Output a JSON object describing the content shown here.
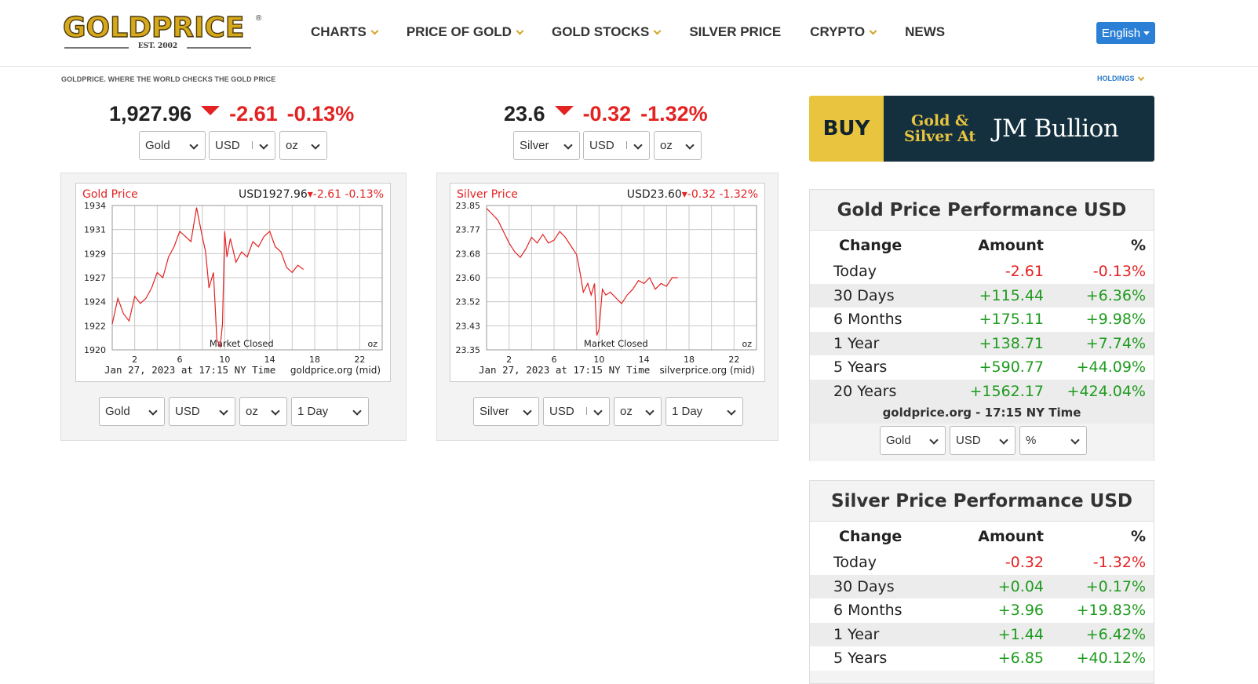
{
  "header": {
    "logo": "GOLDPRICE",
    "logo_est": "EST. 2002",
    "nav": [
      {
        "label": "CHARTS",
        "dropdown": true
      },
      {
        "label": "PRICE OF GOLD",
        "dropdown": true
      },
      {
        "label": "GOLD STOCKS",
        "dropdown": true
      },
      {
        "label": "SILVER PRICE",
        "dropdown": false
      },
      {
        "label": "CRYPTO",
        "dropdown": true
      },
      {
        "label": "NEWS",
        "dropdown": false
      }
    ],
    "language": "English",
    "tagline": "GOLDPRICE. WHERE THE WORLD CHECKS THE GOLD PRICE",
    "holdings": "HOLDINGS"
  },
  "gold_ticker": {
    "price": "1,927.96",
    "change": "-2.61",
    "percent": "-0.13%",
    "metal": "Gold",
    "currency": "USD",
    "unit": "oz"
  },
  "silver_ticker": {
    "price": "23.6",
    "change": "-0.32",
    "percent": "-1.32%",
    "metal": "Silver",
    "currency": "USD",
    "unit": "oz"
  },
  "gold_chart_selects": {
    "metal": "Gold",
    "currency": "USD",
    "unit": "oz",
    "range": "1 Day"
  },
  "silver_chart_selects": {
    "metal": "Silver",
    "currency": "USD",
    "unit": "oz",
    "range": "1 Day"
  },
  "banner": {
    "buy": "BUY",
    "gs_line1": "Gold &",
    "gs_line2": "Silver At",
    "brand": "JM Bullion"
  },
  "gold_perf": {
    "title": "Gold Price Performance USD",
    "headers": [
      "Change",
      "Amount",
      "%"
    ],
    "rows": [
      {
        "period": "Today",
        "amount": "-2.61",
        "pct": "-0.13%",
        "neg": true
      },
      {
        "period": "30 Days",
        "amount": "+115.44",
        "pct": "+6.36%",
        "neg": false
      },
      {
        "period": "6 Months",
        "amount": "+175.11",
        "pct": "+9.98%",
        "neg": false
      },
      {
        "period": "1 Year",
        "amount": "+138.71",
        "pct": "+7.74%",
        "neg": false
      },
      {
        "period": "5 Years",
        "amount": "+590.77",
        "pct": "+44.09%",
        "neg": false
      },
      {
        "period": "20 Years",
        "amount": "+1562.17",
        "pct": "+424.04%",
        "neg": false
      }
    ],
    "footer": "goldprice.org - 17:15 NY Time",
    "selects": {
      "metal": "Gold",
      "currency": "USD",
      "mode": "%"
    }
  },
  "silver_perf": {
    "title": "Silver Price Performance USD",
    "headers": [
      "Change",
      "Amount",
      "%"
    ],
    "rows": [
      {
        "period": "Today",
        "amount": "-0.32",
        "pct": "-1.32%",
        "neg": true
      },
      {
        "period": "30 Days",
        "amount": "+0.04",
        "pct": "+0.17%",
        "neg": false
      },
      {
        "period": "6 Months",
        "amount": "+3.96",
        "pct": "+19.83%",
        "neg": false
      },
      {
        "period": "1 Year",
        "amount": "+1.44",
        "pct": "+6.42%",
        "neg": false
      },
      {
        "period": "5 Years",
        "amount": "+6.85",
        "pct": "+40.12%",
        "neg": false
      }
    ]
  },
  "chart_data": [
    {
      "type": "line",
      "title": "Gold Price",
      "header_value": "USD1927.96",
      "header_change": "-2.61",
      "header_percent": "-0.13%",
      "y_ticks": [
        "1934",
        "1931",
        "1929",
        "1927",
        "1924",
        "1922",
        "1920"
      ],
      "ylim": [
        1920,
        1934
      ],
      "x_ticks": [
        "2",
        "6",
        "10",
        "14",
        "18",
        "22"
      ],
      "xlim": [
        0,
        24
      ],
      "footer_left": "Jan 27, 2023 at 17:15 NY Time",
      "footer_right": "goldprice.org (mid)",
      "annotation": "Market Closed",
      "color": "#e32222",
      "x": [
        0,
        0.5,
        1,
        1.5,
        2,
        2.5,
        3,
        3.5,
        4,
        4.5,
        5,
        5.5,
        6,
        6.5,
        7,
        7.5,
        8,
        8.3,
        8.6,
        9,
        9.3,
        9.6,
        9.8,
        10,
        10.2,
        10.5,
        11,
        11.5,
        12,
        12.5,
        13,
        13.5,
        14,
        14.5,
        15,
        15.5,
        16,
        16.5,
        17
      ],
      "y": [
        1922.5,
        1925,
        1923.5,
        1922.8,
        1925.2,
        1924.5,
        1925,
        1926,
        1927.5,
        1927,
        1929,
        1930,
        1931.5,
        1931,
        1930.5,
        1933.8,
        1931,
        1929.5,
        1926,
        1927.5,
        1921,
        1920.3,
        1922.5,
        1931.5,
        1929,
        1930.8,
        1928.5,
        1929.5,
        1929,
        1930.5,
        1930,
        1931,
        1931.5,
        1930,
        1929.5,
        1928,
        1927.5,
        1928.2,
        1927.8
      ]
    },
    {
      "type": "line",
      "title": "Silver Price",
      "header_value": "USD23.60",
      "header_change": "-0.32",
      "header_percent": "-1.32%",
      "y_ticks": [
        "23.85",
        "23.77",
        "23.68",
        "23.60",
        "23.52",
        "23.43",
        "23.35"
      ],
      "ylim": [
        23.35,
        23.85
      ],
      "x_ticks": [
        "2",
        "6",
        "10",
        "14",
        "18",
        "22"
      ],
      "xlim": [
        0,
        24
      ],
      "footer_left": "Jan 27, 2023 at 17:15 NY Time",
      "footer_right": "silverprice.org (mid)",
      "annotation": "Market Closed",
      "color": "#e32222",
      "x": [
        0,
        0.5,
        1,
        1.5,
        2,
        2.5,
        3,
        3.5,
        4,
        4.5,
        5,
        5.5,
        6,
        6.5,
        7,
        7.5,
        8,
        8.3,
        8.6,
        9,
        9.3,
        9.6,
        9.8,
        10,
        10.3,
        10.6,
        11,
        11.5,
        12,
        12.5,
        13,
        13.5,
        14,
        14.5,
        15,
        15.5,
        16,
        16.5,
        17
      ],
      "y": [
        23.84,
        23.82,
        23.8,
        23.76,
        23.72,
        23.69,
        23.67,
        23.7,
        23.74,
        23.72,
        23.75,
        23.72,
        23.73,
        23.76,
        23.74,
        23.71,
        23.68,
        23.62,
        23.55,
        23.58,
        23.54,
        23.58,
        23.4,
        23.42,
        23.56,
        23.54,
        23.55,
        23.53,
        23.51,
        23.54,
        23.56,
        23.59,
        23.58,
        23.6,
        23.56,
        23.58,
        23.57,
        23.6,
        23.6
      ]
    }
  ]
}
